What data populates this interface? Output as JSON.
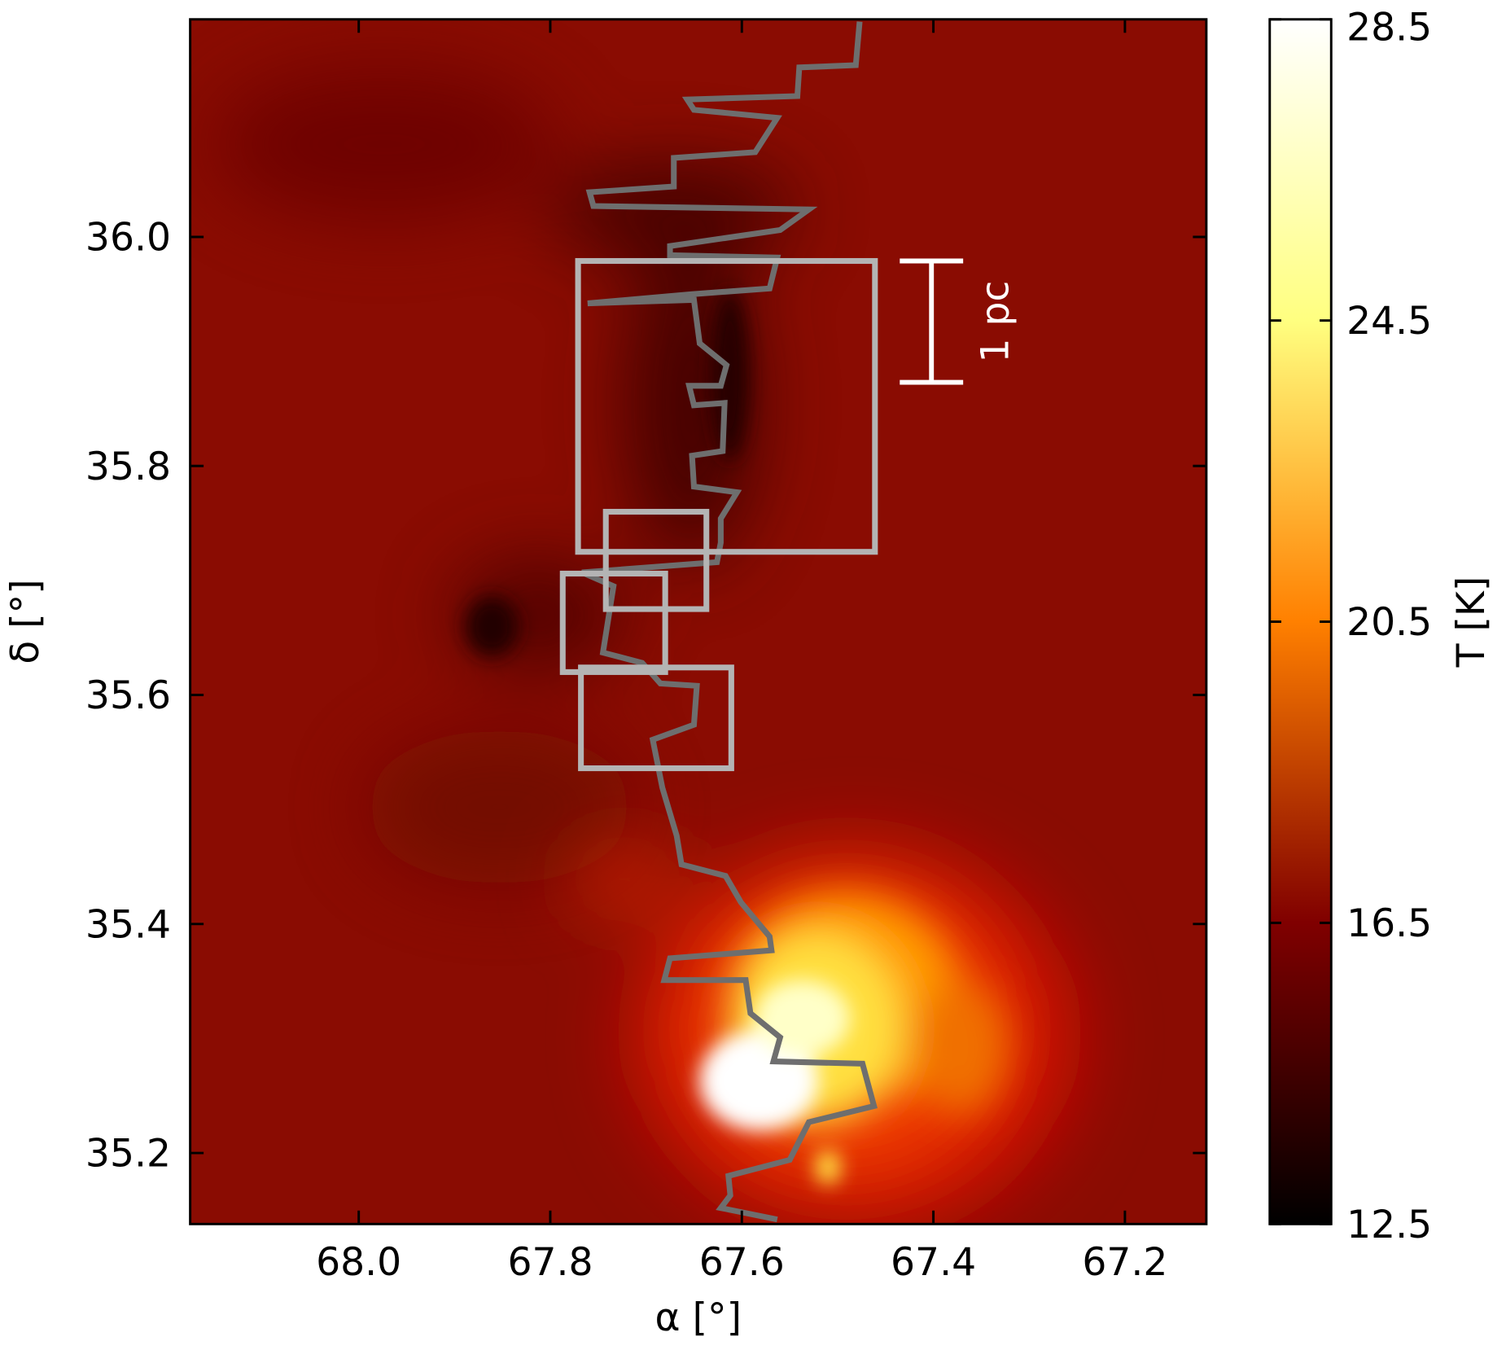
{
  "chart_data": {
    "type": "heatmap",
    "xlabel": "α [°]",
    "ylabel": "δ [°]",
    "colorbar_label": "T [K]",
    "colormap": "afmhot",
    "xlim": [
      68.176,
      67.115
    ],
    "ylim": [
      35.138,
      36.19
    ],
    "xticks": [
      {
        "value": 68,
        "label": "68.0"
      },
      67.8,
      67.6,
      67.4,
      67.2
    ],
    "yticks": [
      35.2,
      35.4,
      35.6,
      35.8,
      {
        "value": 36,
        "label": "36.0"
      }
    ],
    "clim": [
      12.5,
      28.5
    ],
    "cticks": [
      12.5,
      16.5,
      20.5,
      24.5,
      28.5
    ],
    "regions": [
      {
        "x": [
          67.771,
          67.461
        ],
        "y": [
          35.725,
          35.979
        ]
      },
      {
        "x": [
          67.742,
          67.637
        ],
        "y": [
          35.675,
          35.76
        ]
      },
      {
        "x": [
          67.787,
          67.68
        ],
        "y": [
          35.62,
          35.706
        ]
      },
      {
        "x": [
          67.768,
          67.611
        ],
        "y": [
          35.536,
          35.624
        ]
      }
    ],
    "region_color": "#b4b4b4",
    "scale_bar": {
      "label": "1 pc",
      "x": 67.402,
      "y": [
        35.873,
        35.979
      ],
      "color": "#ffffff"
    },
    "filament": {
      "color": "#6e6e6e",
      "x": [
        67.477,
        67.481,
        67.54,
        67.542,
        67.657,
        67.65,
        67.563,
        67.586,
        67.671,
        67.671,
        67.759,
        67.755,
        67.53,
        67.56,
        67.675,
        67.675,
        67.563,
        67.571,
        67.652,
        67.761,
        67.65,
        67.644,
        67.616,
        67.622,
        67.655,
        67.65,
        67.618,
        67.62,
        67.652,
        67.65,
        67.605,
        67.622,
        67.622,
        67.626,
        67.767,
        67.734,
        67.745,
        67.704,
        67.685,
        67.647,
        67.65,
        67.693,
        67.683,
        67.668,
        67.663,
        67.617,
        67.601,
        67.571,
        67.569,
        67.675,
        67.681,
        67.596,
        67.591,
        67.56,
        67.567,
        67.474,
        67.462,
        67.53,
        67.55,
        67.614,
        67.612,
        67.622,
        67.563
      ],
      "y": [
        36.188,
        36.15,
        36.148,
        36.123,
        36.12,
        36.111,
        36.104,
        36.074,
        36.069,
        36.044,
        36.039,
        36.027,
        36.024,
        36.006,
        35.992,
        35.984,
        35.982,
        35.955,
        35.95,
        35.942,
        35.945,
        35.907,
        35.888,
        35.87,
        35.87,
        35.853,
        35.855,
        35.813,
        35.809,
        35.782,
        35.777,
        35.754,
        35.733,
        35.716,
        35.707,
        35.695,
        35.637,
        35.628,
        35.61,
        35.608,
        35.574,
        35.561,
        35.519,
        35.477,
        35.452,
        35.442,
        35.419,
        35.389,
        35.377,
        35.37,
        35.351,
        35.351,
        35.322,
        35.301,
        35.28,
        35.278,
        35.241,
        35.227,
        35.194,
        35.18,
        35.163,
        35.152,
        35.142
      ]
    }
  }
}
